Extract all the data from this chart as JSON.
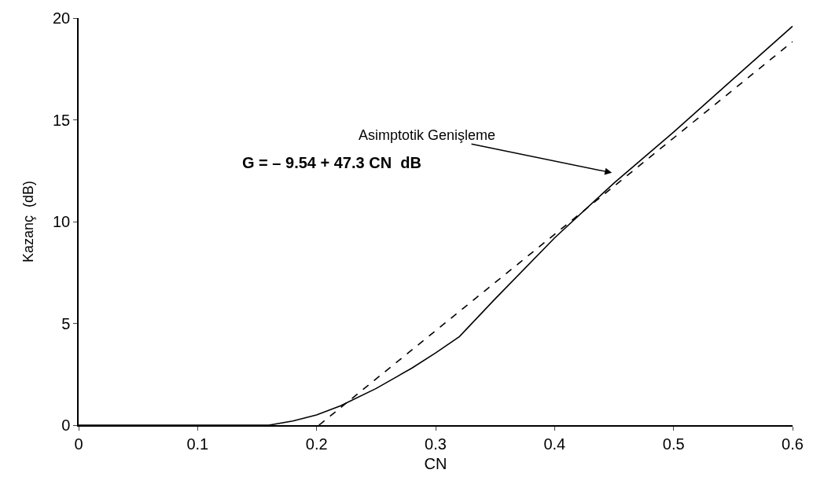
{
  "chart_data": {
    "type": "line",
    "xlabel": "CN",
    "ylabel": "Kazanç  (dB)",
    "xlim": [
      0,
      0.6
    ],
    "ylim": [
      0,
      20
    ],
    "xticks": [
      0,
      0.1,
      0.2,
      0.3,
      0.4,
      0.5,
      0.6
    ],
    "yticks": [
      0,
      5,
      10,
      15,
      20
    ],
    "series": [
      {
        "color": "#000000",
        "line_style": "solid",
        "x": [
          0,
          0.16,
          0.18,
          0.2,
          0.22,
          0.25,
          0.28,
          0.3,
          0.32,
          0.35,
          0.4,
          0.45,
          0.5,
          0.55,
          0.6
        ],
        "values": [
          0,
          0,
          0.2,
          0.5,
          0.95,
          1.8,
          2.8,
          3.55,
          4.35,
          6.2,
          9.2,
          11.9,
          14.4,
          17.0,
          19.6
        ]
      },
      {
        "color": "#000000",
        "line_style": "dashed",
        "x": [
          0.202,
          0.6
        ],
        "values": [
          0,
          18.84
        ]
      }
    ],
    "annotations": [
      "Asimptotik Genişleme",
      "G = – 9.54 + 47.3 CN  dB"
    ]
  }
}
